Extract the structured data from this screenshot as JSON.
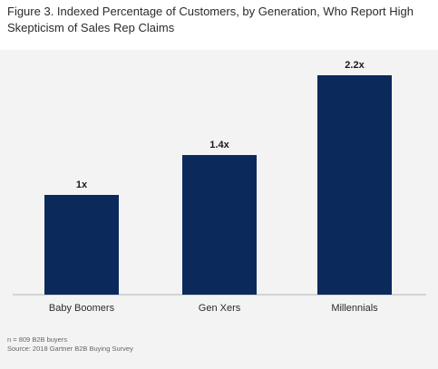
{
  "chart_data": {
    "type": "bar",
    "title": "Figure 3. Indexed Percentage of Customers, by Generation, Who Report High Skepticism of Sales Rep Claims",
    "categories": [
      "Baby Boomers",
      "Gen Xers",
      "Millennials"
    ],
    "values": [
      1.0,
      1.4,
      2.2
    ],
    "value_labels": [
      "1x",
      "1.4x",
      "2.2x"
    ],
    "ylim": [
      0,
      2.3
    ],
    "grid": false,
    "bar_color": "#0b2a5b",
    "footnotes": [
      "n = 809 B2B buyers",
      "Source: 2018 Gartner B2B Buying Survey"
    ]
  },
  "colors": {
    "background": "#ffffff",
    "panel": "#f3f3f3",
    "bar": "#0b2a5b",
    "axis": "#b5b5b5"
  }
}
